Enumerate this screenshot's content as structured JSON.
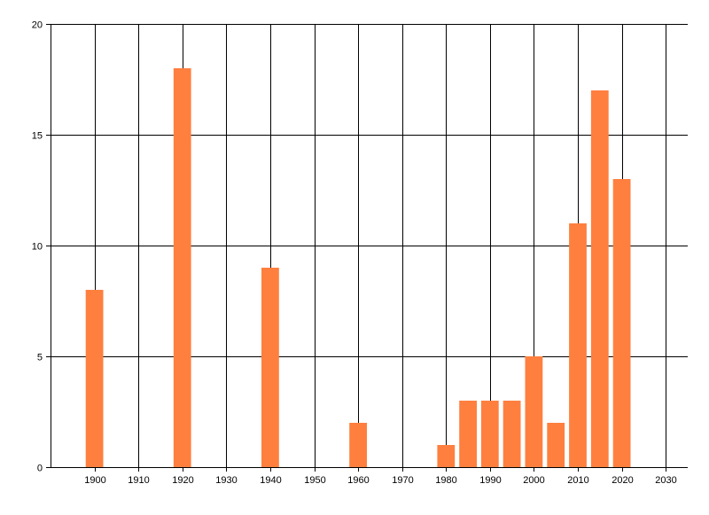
{
  "chart_data": {
    "type": "bar",
    "title": "",
    "xlabel": "",
    "ylabel": "",
    "x": [
      1900,
      1920,
      1940,
      1960,
      1980,
      1985,
      1990,
      1995,
      2000,
      2005,
      2010,
      2015,
      2020
    ],
    "values": [
      8,
      18,
      9,
      2,
      1,
      3,
      3,
      3,
      5,
      2,
      11,
      17,
      13
    ],
    "xlim": [
      1890,
      2035
    ],
    "ylim": [
      0,
      20
    ],
    "xticks": [
      1900,
      1910,
      1920,
      1930,
      1940,
      1950,
      1960,
      1970,
      1980,
      1990,
      2000,
      2010,
      2020,
      2030
    ],
    "yticks": [
      0,
      5,
      10,
      15,
      20
    ],
    "grid": true,
    "bar_color": "#FF7F3F",
    "bar_width_years": 4
  }
}
